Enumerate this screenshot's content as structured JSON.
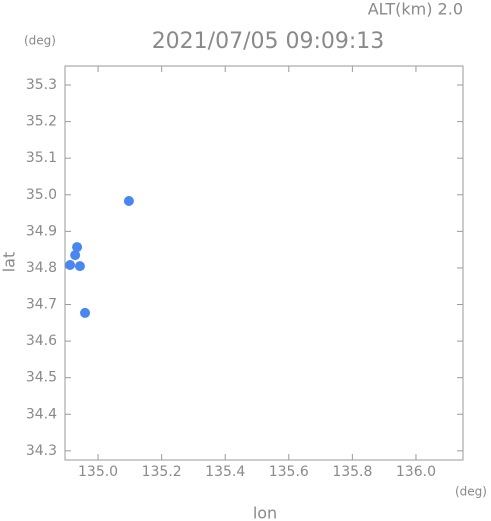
{
  "chart_data": {
    "type": "scatter",
    "title": "2021/07/05 09:09:13",
    "annotation": "ALT(km) 2.0",
    "y_unit": "(deg)",
    "x_unit": "(deg)",
    "y_label": "lat",
    "x_label": "lon",
    "series": [
      {
        "color": "#4a86f0",
        "x": [
          134.912,
          134.928,
          134.934,
          134.943,
          134.959,
          135.097
        ],
        "y": [
          34.808,
          34.835,
          34.857,
          34.805,
          34.677,
          34.983
        ]
      }
    ],
    "xlim": [
      134.896,
      136.148
    ],
    "ylim": [
      34.275,
      35.352
    ],
    "xticks": [
      {
        "value": 135.0,
        "label": "135.0"
      },
      135.2,
      135.4,
      135.6,
      135.8,
      {
        "value": 136.0,
        "label": "136.0"
      }
    ],
    "yticks": [
      34.3,
      34.4,
      34.5,
      34.6,
      34.7,
      34.8,
      34.9,
      {
        "value": 35.0,
        "label": "35.0"
      },
      35.1,
      35.2,
      35.3
    ],
    "grid": false
  }
}
